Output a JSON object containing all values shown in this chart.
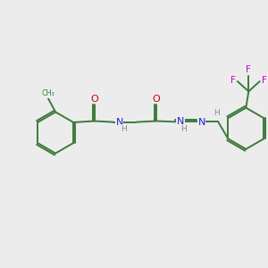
{
  "background_color": "#ececec",
  "bond_color": "#3d7a3d",
  "N_color": "#2020e0",
  "O_color": "#cc0000",
  "F_color": "#cc00cc",
  "H_color": "#888888",
  "line_width": 1.4,
  "figsize": [
    3.0,
    3.0
  ],
  "dpi": 100,
  "xlim": [
    0,
    10
  ],
  "ylim": [
    0,
    10
  ]
}
